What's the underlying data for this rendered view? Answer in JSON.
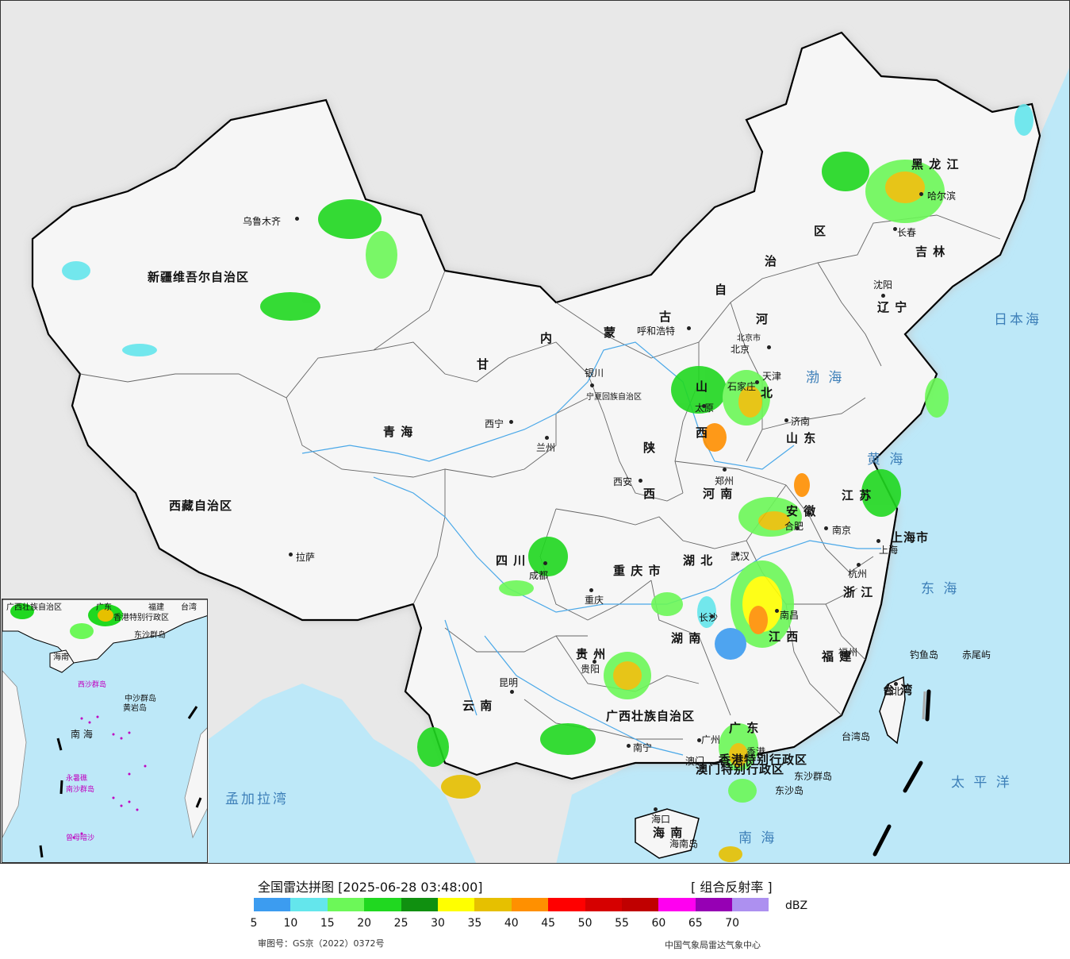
{
  "map": {
    "provinces": [
      {
        "id": "xinjiang",
        "name": "新疆维吾尔自治区",
        "cls": "big"
      },
      {
        "id": "xizang",
        "name": "西藏自治区",
        "cls": "big"
      },
      {
        "id": "qinghai",
        "name": "青   海",
        "cls": "big"
      },
      {
        "id": "gansu",
        "name": "甘",
        "cls": "big"
      },
      {
        "id": "neimenggu1",
        "name": "内",
        "cls": "big"
      },
      {
        "id": "neimenggu2",
        "name": "蒙",
        "cls": "big"
      },
      {
        "id": "neimenggu3",
        "name": "古",
        "cls": "big"
      },
      {
        "id": "neimenggu4",
        "name": "自",
        "cls": "big"
      },
      {
        "id": "neimenggu5",
        "name": "治",
        "cls": "big"
      },
      {
        "id": "neimenggu6",
        "name": "区",
        "cls": "big"
      },
      {
        "id": "heilongjiang",
        "name": "黑 龙 江",
        "cls": "big"
      },
      {
        "id": "jilin",
        "name": "吉 林",
        "cls": "big"
      },
      {
        "id": "liaoning",
        "name": "辽 宁",
        "cls": "big"
      },
      {
        "id": "hebei",
        "name": "河",
        "cls": "big"
      },
      {
        "id": "hebei2",
        "name": "北",
        "cls": "big"
      },
      {
        "id": "shanxi",
        "name": "山",
        "cls": "big"
      },
      {
        "id": "shanxi2",
        "name": "西",
        "cls": "big"
      },
      {
        "id": "shandong",
        "name": "山 东",
        "cls": "big"
      },
      {
        "id": "henan",
        "name": "河 南",
        "cls": "big"
      },
      {
        "id": "shaanxi",
        "name": "陕",
        "cls": "big"
      },
      {
        "id": "shaanxi2",
        "name": "西",
        "cls": "big"
      },
      {
        "id": "ningxia",
        "name": "宁夏回族自治区",
        "cls": "tiny"
      },
      {
        "id": "jiangsu",
        "name": "江 苏",
        "cls": "big"
      },
      {
        "id": "anhui",
        "name": "安 徽",
        "cls": "big"
      },
      {
        "id": "shanghai",
        "name": "上海市",
        "cls": "big"
      },
      {
        "id": "zhejiang",
        "name": "浙 江",
        "cls": "big"
      },
      {
        "id": "hubei",
        "name": "湖 北",
        "cls": "big"
      },
      {
        "id": "chongqing",
        "name": "重 庆 市",
        "cls": "big"
      },
      {
        "id": "sichuan",
        "name": "四    川",
        "cls": "big"
      },
      {
        "id": "hunan",
        "name": "湖 南",
        "cls": "big"
      },
      {
        "id": "jiangxi",
        "name": "江 西",
        "cls": "big"
      },
      {
        "id": "fujian",
        "name": "福 建",
        "cls": "big"
      },
      {
        "id": "guizhou",
        "name": "贵 州",
        "cls": "big"
      },
      {
        "id": "yunnan",
        "name": "云   南",
        "cls": "big"
      },
      {
        "id": "guangxi",
        "name": "广西壮族自治区",
        "cls": "big"
      },
      {
        "id": "guangdong",
        "name": "广 东",
        "cls": "big"
      },
      {
        "id": "hainan",
        "name": "海 南",
        "cls": "big"
      },
      {
        "id": "taiwan",
        "name": "台 湾",
        "cls": "big"
      },
      {
        "id": "hongkong",
        "name": "香港特别行政区",
        "cls": "big"
      },
      {
        "id": "macau",
        "name": "澳门特别行政区",
        "cls": "big"
      },
      {
        "id": "tianjin",
        "name": "天津",
        "cls": "small"
      },
      {
        "id": "beijing_city",
        "name": "北京市",
        "cls": "tiny"
      }
    ],
    "cities": [
      {
        "id": "urumqi",
        "name": "乌鲁木齐"
      },
      {
        "id": "lhasa",
        "name": "拉萨"
      },
      {
        "id": "xining",
        "name": "西宁"
      },
      {
        "id": "lanzhou",
        "name": "兰州"
      },
      {
        "id": "yinchuan",
        "name": "银川"
      },
      {
        "id": "hohhot",
        "name": "呼和浩特"
      },
      {
        "id": "beijing",
        "name": "北京"
      },
      {
        "id": "shijiazhuang",
        "name": "石家庄"
      },
      {
        "id": "taiyuan",
        "name": "太原"
      },
      {
        "id": "jinan",
        "name": "济南"
      },
      {
        "id": "zhengzhou",
        "name": "郑州"
      },
      {
        "id": "xian",
        "name": "西安"
      },
      {
        "id": "harbin",
        "name": "哈尔滨"
      },
      {
        "id": "changchun",
        "name": "长春"
      },
      {
        "id": "shenyang",
        "name": "沈阳"
      },
      {
        "id": "nanjing",
        "name": "南京"
      },
      {
        "id": "hefei",
        "name": "合肥"
      },
      {
        "id": "shanghai_city",
        "name": "上海"
      },
      {
        "id": "hangzhou",
        "name": "杭州"
      },
      {
        "id": "wuhan",
        "name": "武汉"
      },
      {
        "id": "chengdu",
        "name": "成都"
      },
      {
        "id": "chongqing_city",
        "name": "重庆"
      },
      {
        "id": "changsha",
        "name": "长沙"
      },
      {
        "id": "nanchang",
        "name": "南昌"
      },
      {
        "id": "fuzhou",
        "name": "福州"
      },
      {
        "id": "guiyang",
        "name": "贵阳"
      },
      {
        "id": "kunming",
        "name": "昆明"
      },
      {
        "id": "nanning",
        "name": "南宁"
      },
      {
        "id": "guangzhou",
        "name": "广州"
      },
      {
        "id": "haikou",
        "name": "海口"
      },
      {
        "id": "taibei",
        "name": "台北"
      },
      {
        "id": "hk",
        "name": "香港"
      },
      {
        "id": "macau_city",
        "name": "澳门"
      }
    ],
    "seas": [
      {
        "id": "bohai",
        "name": "渤 海"
      },
      {
        "id": "huanghai",
        "name": "黄 海"
      },
      {
        "id": "donghai",
        "name": "东 海"
      },
      {
        "id": "nanhai",
        "name": "南 海"
      },
      {
        "id": "taipingyang",
        "name": "太 平 洋"
      },
      {
        "id": "ribenhai",
        "name": "日本海"
      },
      {
        "id": "mengjialawan",
        "name": "孟加拉湾"
      }
    ],
    "islands": [
      {
        "id": "diaoyu",
        "name": "钓鱼岛"
      },
      {
        "id": "chiwei",
        "name": "赤尾屿"
      },
      {
        "id": "taiwandao",
        "name": "台湾岛"
      },
      {
        "id": "dongsha",
        "name": "东沙群岛"
      },
      {
        "id": "dongshadao",
        "name": "东沙岛"
      },
      {
        "id": "hainandao",
        "name": "海南岛"
      }
    ],
    "inset_labels": [
      {
        "id": "i_guangxi",
        "name": "广西壮族自治区"
      },
      {
        "id": "i_guangdong",
        "name": "广东"
      },
      {
        "id": "i_fujian",
        "name": "福建"
      },
      {
        "id": "i_taiwan",
        "name": "台湾"
      },
      {
        "id": "i_hk",
        "name": "香港特别行政区"
      },
      {
        "id": "i_dongsha",
        "name": "东沙群岛"
      },
      {
        "id": "i_hainan",
        "name": "海南"
      },
      {
        "id": "i_xisha",
        "name": "西沙群岛"
      },
      {
        "id": "i_zhongsha",
        "name": "中沙群岛"
      },
      {
        "id": "i_huangyan",
        "name": "黄岩岛"
      },
      {
        "id": "i_nanhai",
        "name": "南 海"
      },
      {
        "id": "i_nansha",
        "name": "南沙群岛"
      },
      {
        "id": "i_yongshu",
        "name": "永暑礁"
      },
      {
        "id": "i_zengmu",
        "name": "曾母暗沙"
      }
    ]
  },
  "legend": {
    "title": "全国雷达拼图 [2025-06-28 03:48:00]",
    "product": "[ 组合反射率 ]",
    "unit": "dBZ",
    "ticks": [
      "5",
      "10",
      "15",
      "20",
      "25",
      "30",
      "35",
      "40",
      "45",
      "50",
      "55",
      "60",
      "65",
      "70"
    ],
    "colors": [
      "#3c9cf0",
      "#64e6ec",
      "#6cf858",
      "#20d820",
      "#109010",
      "#ffff00",
      "#e6c000",
      "#ff9000",
      "#ff0000",
      "#d60000",
      "#c00000",
      "#ff00f0",
      "#9600b4",
      "#ad90f0"
    ],
    "approval": "审图号：GS京（2022）0372号",
    "source": "中国气象局雷达气象中心"
  }
}
